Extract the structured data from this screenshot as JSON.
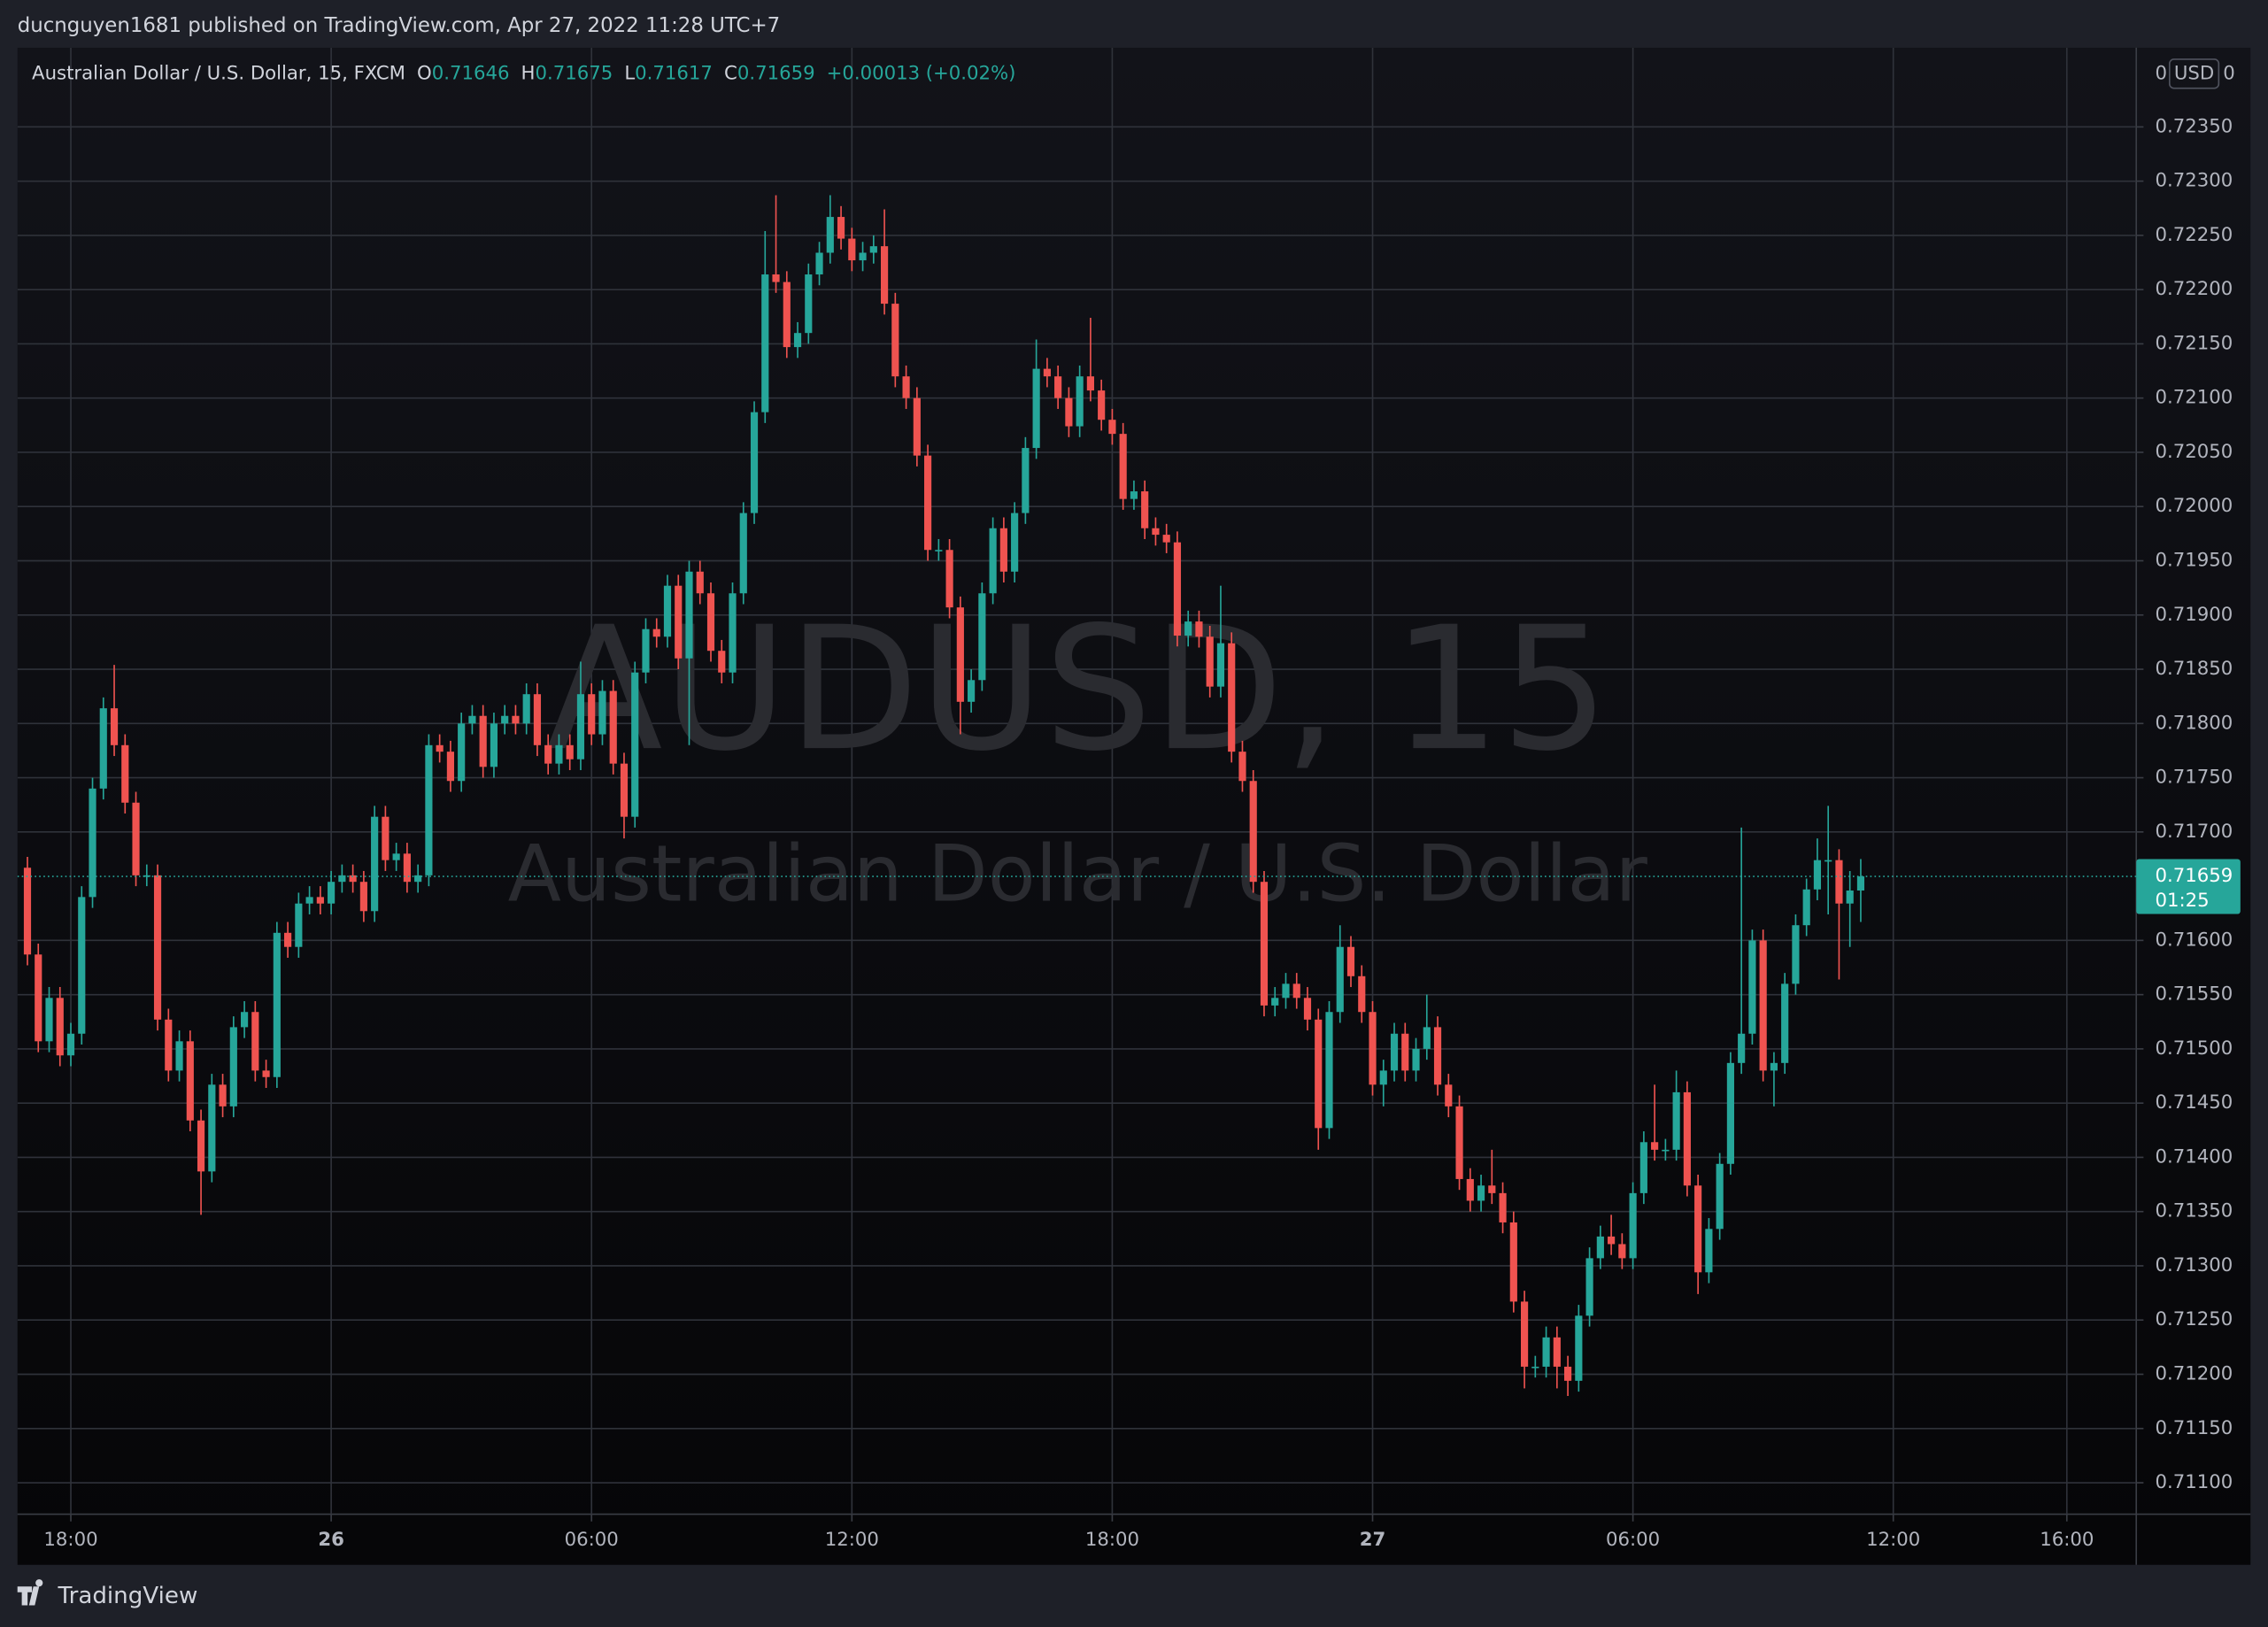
{
  "header": {
    "publisher": "ducnguyen1681 published on TradingView.com, Apr 27, 2022 11:28 UTC+7"
  },
  "footer": {
    "brand": "TradingView"
  },
  "chart_data": {
    "type": "candlestick",
    "symbol": "Australian Dollar / U.S. Dollar, 15, FXCM",
    "ohlc_labels": [
      "O",
      "H",
      "L",
      "C"
    ],
    "change": {
      "value": 0.00013,
      "label": "+0.00013"
    },
    "change_pct": {
      "value": 0.02,
      "label": "(+0.02%)"
    },
    "watermark": "AUDUSD, 15",
    "watermark_name": "Australian Dollar / U.S. Dollar",
    "scale_left": "0",
    "currency": "USD",
    "scale_right": "0",
    "countdown": "01:25",
    "up_color": "#26a69a",
    "down_color": "#ef5350",
    "grid": true,
    "x": [
      -7,
      -6.75,
      -6.5,
      -6.25,
      -6,
      -5.75,
      -5.5,
      -5.25,
      -5,
      -4.75,
      -4.5,
      -4.25,
      -4,
      -3.75,
      -3.5,
      -3.25,
      -3,
      -2.75,
      -2.5,
      -2.25,
      -2,
      -1.75,
      -1.5,
      -1.25,
      -1,
      -0.75,
      -0.5,
      -0.25,
      0,
      0.25,
      0.5,
      0.75,
      1,
      1.25,
      1.5,
      1.75,
      2,
      2.25,
      2.5,
      2.75,
      3,
      3.25,
      3.5,
      3.75,
      4,
      4.25,
      4.5,
      4.75,
      5,
      5.25,
      5.5,
      5.75,
      6,
      6.25,
      6.5,
      6.75,
      7,
      7.25,
      7.5,
      7.75,
      8,
      8.25,
      8.5,
      8.75,
      9,
      9.25,
      9.5,
      9.75,
      10,
      10.25,
      10.5,
      10.75,
      11,
      11.25,
      11.5,
      11.75,
      12,
      12.25,
      12.5,
      12.75,
      13,
      13.25,
      13.5,
      13.75,
      14,
      14.25,
      14.5,
      14.75,
      15,
      15.25,
      15.5,
      15.75,
      16,
      16.25,
      16.5,
      16.75,
      17,
      17.25,
      17.5,
      17.75,
      18,
      18.25,
      18.5,
      18.75,
      19,
      19.25,
      19.5,
      19.75,
      20,
      20.25,
      20.5,
      20.75,
      21,
      21.25,
      21.5,
      21.75,
      22,
      22.25,
      22.5,
      22.75,
      23,
      23.25,
      23.5,
      23.75,
      24,
      24.25,
      24.5,
      24.75,
      25,
      25.25,
      25.5,
      25.75,
      26,
      26.25,
      26.5,
      26.75,
      27,
      27.25,
      27.5,
      27.75,
      28,
      28.25,
      28.5,
      28.75,
      29,
      29.25,
      29.5,
      29.75,
      30,
      30.25,
      30.5,
      30.75,
      31,
      31.25,
      31.5,
      31.75,
      32,
      32.25,
      32.5,
      32.75,
      33,
      33.25,
      33.5,
      33.75,
      34,
      34.25,
      34.5,
      34.75,
      35,
      35.25
    ],
    "open": [
      0.71667,
      0.71587,
      0.71507,
      0.71547,
      0.71494,
      0.71514,
      0.7164,
      0.7174,
      0.71814,
      0.7178,
      0.71727,
      0.7166,
      0.7166,
      0.71527,
      0.7148,
      0.71507,
      0.71434,
      0.71387,
      0.71467,
      0.71447,
      0.7152,
      0.71534,
      0.7148,
      0.71474,
      0.71607,
      0.71594,
      0.71634,
      0.7164,
      0.71634,
      0.71654,
      0.7166,
      0.71654,
      0.71627,
      0.71714,
      0.71674,
      0.7168,
      0.71654,
      0.7166,
      0.7178,
      0.71774,
      0.71747,
      0.718,
      0.71807,
      0.7176,
      0.718,
      0.71807,
      0.718,
      0.71827,
      0.7178,
      0.71763,
      0.7178,
      0.71767,
      0.71827,
      0.7179,
      0.7183,
      0.71763,
      0.71714,
      0.71847,
      0.71887,
      0.7188,
      0.71927,
      0.7186,
      0.7194,
      0.7192,
      0.71867,
      0.71847,
      0.7192,
      0.71994,
      0.72087,
      0.72214,
      0.72207,
      0.72147,
      0.7216,
      0.72214,
      0.72234,
      0.72267,
      0.72247,
      0.72227,
      0.72234,
      0.7224,
      0.72187,
      0.7212,
      0.721,
      0.72047,
      0.7196,
      0.7196,
      0.71907,
      0.7182,
      0.7184,
      0.7192,
      0.7198,
      0.7194,
      0.71994,
      0.72054,
      0.72127,
      0.7212,
      0.721,
      0.72074,
      0.7212,
      0.72107,
      0.7208,
      0.72067,
      0.72007,
      0.72014,
      0.7198,
      0.71974,
      0.71967,
      0.71881,
      0.71894,
      0.7188,
      0.71834,
      0.71874,
      0.71774,
      0.71747,
      0.71654,
      0.7154,
      0.71547,
      0.7156,
      0.71547,
      0.71527,
      0.71427,
      0.71534,
      0.71594,
      0.71567,
      0.71534,
      0.71467,
      0.7148,
      0.71514,
      0.7148,
      0.715,
      0.7152,
      0.71467,
      0.71447,
      0.7138,
      0.7136,
      0.71374,
      0.71367,
      0.7134,
      0.71267,
      0.71207,
      0.71207,
      0.71234,
      0.71207,
      0.71194,
      0.71254,
      0.71307,
      0.71327,
      0.7132,
      0.71307,
      0.71367,
      0.71414,
      0.71407,
      0.71407,
      0.7146,
      0.71374,
      0.71294,
      0.71334,
      0.71394,
      0.71487,
      0.71514,
      0.716,
      0.7148,
      0.71487,
      0.7156,
      0.71614,
      0.71647,
      0.71674,
      0.71674,
      0.71634,
      0.71646
    ],
    "high": [
      0.71677,
      0.71597,
      0.71557,
      0.71557,
      0.71524,
      0.7165,
      0.7175,
      0.71824,
      0.71854,
      0.7179,
      0.71737,
      0.7167,
      0.7167,
      0.71537,
      0.71517,
      0.71517,
      0.71444,
      0.71477,
      0.71477,
      0.7153,
      0.71544,
      0.71544,
      0.7149,
      0.71617,
      0.71617,
      0.71644,
      0.7165,
      0.7165,
      0.71664,
      0.7167,
      0.7167,
      0.71664,
      0.71724,
      0.71724,
      0.7169,
      0.7169,
      0.7167,
      0.7179,
      0.7179,
      0.71784,
      0.7181,
      0.71817,
      0.71817,
      0.7181,
      0.71817,
      0.71817,
      0.71837,
      0.71837,
      0.7179,
      0.7179,
      0.7179,
      0.71857,
      0.71837,
      0.7184,
      0.7184,
      0.71773,
      0.71857,
      0.71897,
      0.71897,
      0.71937,
      0.71937,
      0.7195,
      0.7195,
      0.7193,
      0.71877,
      0.7193,
      0.72004,
      0.72097,
      0.72254,
      0.72287,
      0.72217,
      0.7217,
      0.72224,
      0.72244,
      0.72287,
      0.72277,
      0.72257,
      0.72244,
      0.7225,
      0.72274,
      0.72197,
      0.7213,
      0.7211,
      0.72057,
      0.7197,
      0.7197,
      0.71917,
      0.7185,
      0.7193,
      0.7199,
      0.7199,
      0.72004,
      0.72064,
      0.72154,
      0.72137,
      0.7213,
      0.7211,
      0.7213,
      0.72174,
      0.72117,
      0.7209,
      0.72077,
      0.72024,
      0.72024,
      0.7199,
      0.71984,
      0.71977,
      0.71904,
      0.71904,
      0.7189,
      0.71927,
      0.71884,
      0.71784,
      0.71757,
      0.71664,
      0.71557,
      0.7157,
      0.7157,
      0.71557,
      0.71537,
      0.71544,
      0.71614,
      0.71604,
      0.71577,
      0.71544,
      0.7149,
      0.71524,
      0.71524,
      0.7151,
      0.7155,
      0.7153,
      0.71477,
      0.71457,
      0.7139,
      0.71384,
      0.71407,
      0.71377,
      0.7135,
      0.71277,
      0.71217,
      0.71244,
      0.71244,
      0.71217,
      0.71264,
      0.71317,
      0.71337,
      0.71347,
      0.7133,
      0.71377,
      0.71424,
      0.71467,
      0.71417,
      0.7148,
      0.7147,
      0.71384,
      0.71344,
      0.71404,
      0.71497,
      0.71704,
      0.7161,
      0.7161,
      0.71497,
      0.7157,
      0.71624,
      0.71657,
      0.71694,
      0.71724,
      0.71684,
      0.71664,
      0.71675
    ],
    "low": [
      0.71577,
      0.71497,
      0.71497,
      0.71484,
      0.71484,
      0.71504,
      0.7163,
      0.7173,
      0.7177,
      0.71717,
      0.7165,
      0.7165,
      0.71517,
      0.7147,
      0.7147,
      0.71424,
      0.71347,
      0.71377,
      0.71437,
      0.71437,
      0.7151,
      0.7147,
      0.71464,
      0.71464,
      0.71584,
      0.71584,
      0.71624,
      0.71624,
      0.71624,
      0.71644,
      0.71644,
      0.71617,
      0.71617,
      0.71664,
      0.71664,
      0.71644,
      0.71644,
      0.7165,
      0.71764,
      0.71737,
      0.71737,
      0.7179,
      0.7175,
      0.7175,
      0.7179,
      0.7179,
      0.7179,
      0.7177,
      0.71753,
      0.71753,
      0.71757,
      0.71757,
      0.7178,
      0.7178,
      0.71753,
      0.71694,
      0.71704,
      0.71837,
      0.7187,
      0.7187,
      0.7185,
      0.7178,
      0.7191,
      0.71857,
      0.71837,
      0.71837,
      0.7191,
      0.71984,
      0.72077,
      0.72197,
      0.72137,
      0.72137,
      0.7215,
      0.72204,
      0.72224,
      0.72237,
      0.72217,
      0.72217,
      0.72224,
      0.72177,
      0.7211,
      0.7209,
      0.72037,
      0.7195,
      0.7195,
      0.71897,
      0.7179,
      0.7181,
      0.7183,
      0.7191,
      0.7193,
      0.7193,
      0.71984,
      0.72044,
      0.7211,
      0.7209,
      0.72064,
      0.72064,
      0.72097,
      0.7207,
      0.72057,
      0.71997,
      0.71997,
      0.7197,
      0.71964,
      0.71957,
      0.71871,
      0.71871,
      0.7187,
      0.71824,
      0.71824,
      0.71764,
      0.71737,
      0.71644,
      0.7153,
      0.7153,
      0.71537,
      0.71537,
      0.71517,
      0.71407,
      0.71417,
      0.71524,
      0.71557,
      0.71524,
      0.71457,
      0.71447,
      0.7147,
      0.7147,
      0.7147,
      0.7149,
      0.71457,
      0.71437,
      0.7137,
      0.7135,
      0.7135,
      0.71357,
      0.7133,
      0.71257,
      0.71187,
      0.71197,
      0.71197,
      0.71187,
      0.7118,
      0.71184,
      0.71244,
      0.71297,
      0.7131,
      0.71297,
      0.71297,
      0.71357,
      0.71397,
      0.71397,
      0.71397,
      0.71364,
      0.71274,
      0.71284,
      0.71324,
      0.71384,
      0.71477,
      0.71504,
      0.7147,
      0.71447,
      0.71477,
      0.7155,
      0.71604,
      0.71637,
      0.71624,
      0.71564,
      0.71594,
      0.71617
    ],
    "close": [
      0.71587,
      0.71507,
      0.71547,
      0.71494,
      0.71514,
      0.7164,
      0.7174,
      0.71814,
      0.7178,
      0.71727,
      0.7166,
      0.7166,
      0.71527,
      0.7148,
      0.71507,
      0.71434,
      0.71387,
      0.71467,
      0.71447,
      0.7152,
      0.71534,
      0.7148,
      0.71474,
      0.71607,
      0.71594,
      0.71634,
      0.7164,
      0.71634,
      0.71654,
      0.7166,
      0.71654,
      0.71627,
      0.71714,
      0.71674,
      0.7168,
      0.71654,
      0.7166,
      0.7178,
      0.71774,
      0.71747,
      0.718,
      0.71807,
      0.7176,
      0.718,
      0.71807,
      0.718,
      0.71827,
      0.7178,
      0.71763,
      0.7178,
      0.71767,
      0.71827,
      0.7179,
      0.7183,
      0.71763,
      0.71714,
      0.71847,
      0.71887,
      0.7188,
      0.71927,
      0.7186,
      0.7194,
      0.7192,
      0.71867,
      0.71847,
      0.7192,
      0.71994,
      0.72087,
      0.72214,
      0.72207,
      0.72147,
      0.7216,
      0.72214,
      0.72234,
      0.72267,
      0.72247,
      0.72227,
      0.72234,
      0.7224,
      0.72187,
      0.7212,
      0.721,
      0.72047,
      0.7196,
      0.7196,
      0.71907,
      0.7182,
      0.7184,
      0.7192,
      0.7198,
      0.7194,
      0.71994,
      0.72054,
      0.72127,
      0.7212,
      0.721,
      0.72074,
      0.7212,
      0.72107,
      0.7208,
      0.72067,
      0.72007,
      0.72014,
      0.7198,
      0.71974,
      0.71967,
      0.71881,
      0.71894,
      0.7188,
      0.71834,
      0.71874,
      0.71774,
      0.71747,
      0.71654,
      0.7154,
      0.71547,
      0.7156,
      0.71547,
      0.71527,
      0.71427,
      0.71534,
      0.71594,
      0.71567,
      0.71534,
      0.71467,
      0.7148,
      0.71514,
      0.7148,
      0.715,
      0.7152,
      0.71467,
      0.71447,
      0.7138,
      0.7136,
      0.71374,
      0.71367,
      0.7134,
      0.71267,
      0.71207,
      0.71207,
      0.71234,
      0.71207,
      0.71194,
      0.71254,
      0.71307,
      0.71327,
      0.7132,
      0.71307,
      0.71367,
      0.71414,
      0.71407,
      0.71407,
      0.7146,
      0.71374,
      0.71294,
      0.71334,
      0.71394,
      0.71487,
      0.71514,
      0.716,
      0.7148,
      0.71487,
      0.7156,
      0.71614,
      0.71647,
      0.71674,
      0.71674,
      0.71634,
      0.71646,
      0.71659
    ],
    "xlim": [
      -7.23,
      41.6
    ],
    "ylim": [
      0.71071,
      0.72423
    ],
    "xticks": [
      {
        "value": -6,
        "label": "18:00"
      },
      {
        "value": 0,
        "label": "26"
      },
      {
        "value": 6,
        "label": "06:00"
      },
      {
        "value": 12,
        "label": "12:00"
      },
      {
        "value": 18,
        "label": "18:00"
      },
      {
        "value": 24,
        "label": "27"
      },
      {
        "value": 30,
        "label": "06:00"
      },
      {
        "value": 36,
        "label": "12:00"
      },
      {
        "value": 40,
        "label": "16:00"
      }
    ],
    "yticks": [
      {
        "value": 0.711,
        "label": "0.71100"
      },
      {
        "value": 0.7115,
        "label": "0.71150"
      },
      {
        "value": 0.712,
        "label": "0.71200"
      },
      {
        "value": 0.7125,
        "label": "0.71250"
      },
      {
        "value": 0.713,
        "label": "0.71300"
      },
      {
        "value": 0.7135,
        "label": "0.71350"
      },
      {
        "value": 0.714,
        "label": "0.71400"
      },
      {
        "value": 0.7145,
        "label": "0.71450"
      },
      {
        "value": 0.715,
        "label": "0.71500"
      },
      {
        "value": 0.7155,
        "label": "0.71550"
      },
      {
        "value": 0.716,
        "label": "0.71600"
      },
      {
        "value": 0.717,
        "label": "0.71700"
      },
      {
        "value": 0.7175,
        "label": "0.71750"
      },
      {
        "value": 0.718,
        "label": "0.71800"
      },
      {
        "value": 0.7185,
        "label": "0.71850"
      },
      {
        "value": 0.719,
        "label": "0.71900"
      },
      {
        "value": 0.7195,
        "label": "0.71950"
      },
      {
        "value": 0.72,
        "label": "0.72000"
      },
      {
        "value": 0.7205,
        "label": "0.72050"
      },
      {
        "value": 0.721,
        "label": "0.72100"
      },
      {
        "value": 0.7215,
        "label": "0.72150"
      },
      {
        "value": 0.722,
        "label": "0.72200"
      },
      {
        "value": 0.7225,
        "label": "0.72250"
      },
      {
        "value": 0.723,
        "label": "0.72300"
      },
      {
        "value": 0.7235,
        "label": "0.72350"
      }
    ]
  }
}
